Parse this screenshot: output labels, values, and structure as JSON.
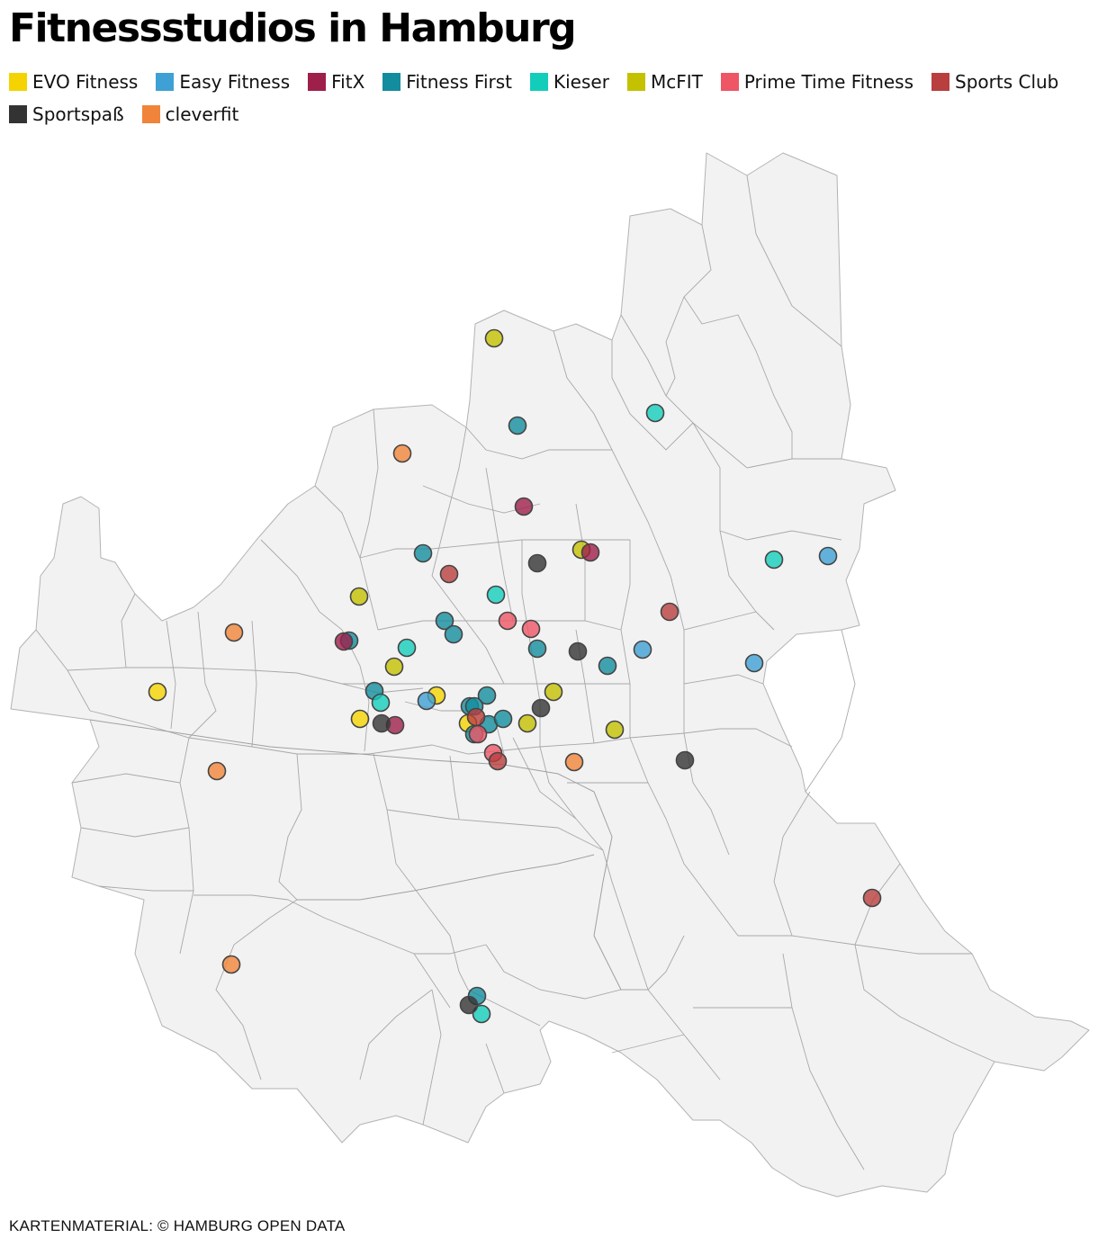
{
  "title": "Fitnessstudios in Hamburg",
  "legend": [
    {
      "label": "EVO Fitness",
      "color": "#f5d300"
    },
    {
      "label": "Easy Fitness",
      "color": "#3fa0d5"
    },
    {
      "label": "FitX",
      "color": "#9e1f4a"
    },
    {
      "label": "Fitness First",
      "color": "#138d9e"
    },
    {
      "label": "Kieser",
      "color": "#13cdbb"
    },
    {
      "label": "McFIT",
      "color": "#c3c100"
    },
    {
      "label": "Prime Time Fitness",
      "color": "#ee5565"
    },
    {
      "label": "Sports Club",
      "color": "#b93e3e"
    },
    {
      "label": "Sportspaß",
      "color": "#333333"
    },
    {
      "label": "cleverfit",
      "color": "#f0843a"
    }
  ],
  "map": {
    "fill_color": "#f2f2f2",
    "border_color": "#a8a8a8"
  },
  "source": "KARTENMATERIAL: © HAMBURG OPEN DATA"
}
